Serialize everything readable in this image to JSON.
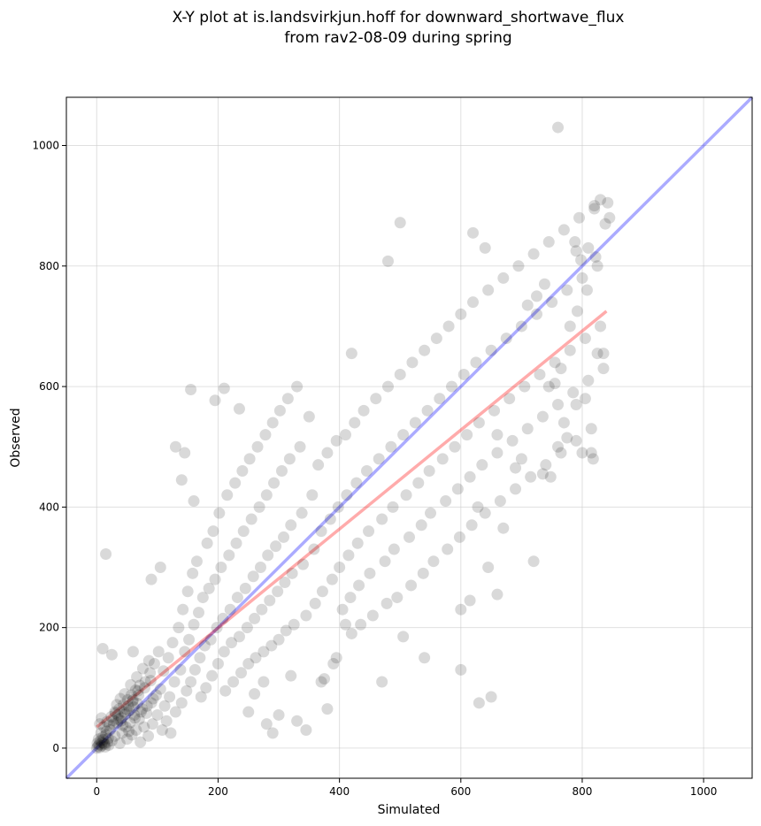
{
  "chart_data": {
    "type": "scatter",
    "title_line1": "X-Y plot at is.landsvirkjun.hoff for downward_shortwave_flux",
    "title_line2": "from rav2-08-09 during spring",
    "xlabel": "Simulated",
    "ylabel": "Observed",
    "xlim": [
      -50,
      1080
    ],
    "ylim": [
      -50,
      1080
    ],
    "xticks": [
      0,
      200,
      400,
      600,
      800,
      1000
    ],
    "yticks": [
      0,
      200,
      400,
      600,
      800,
      1000
    ],
    "grid": true,
    "colors": {
      "points": "#000000",
      "one_to_one_line": "#0000ff",
      "fit_line": "#ff0000"
    },
    "one_to_one_line": {
      "x": [
        -50,
        1080
      ],
      "y": [
        -50,
        1080
      ]
    },
    "fit_line": {
      "x": [
        0,
        840
      ],
      "y": [
        35,
        725
      ]
    },
    "points": [
      [
        0,
        0
      ],
      [
        2,
        3
      ],
      [
        4,
        6
      ],
      [
        5,
        1
      ],
      [
        6,
        12
      ],
      [
        8,
        4
      ],
      [
        10,
        18
      ],
      [
        12,
        8
      ],
      [
        14,
        2
      ],
      [
        15,
        22
      ],
      [
        18,
        10
      ],
      [
        20,
        5
      ],
      [
        3,
        15
      ],
      [
        7,
        25
      ],
      [
        11,
        14
      ],
      [
        16,
        28
      ],
      [
        9,
        9
      ],
      [
        13,
        6
      ],
      [
        1,
        8
      ],
      [
        19,
        16
      ],
      [
        22,
        30
      ],
      [
        25,
        12
      ],
      [
        28,
        40
      ],
      [
        30,
        20
      ],
      [
        35,
        55
      ],
      [
        38,
        8
      ],
      [
        40,
        45
      ],
      [
        42,
        25
      ],
      [
        45,
        60
      ],
      [
        48,
        35
      ],
      [
        50,
        15
      ],
      [
        52,
        70
      ],
      [
        55,
        42
      ],
      [
        58,
        22
      ],
      [
        60,
        80
      ],
      [
        62,
        55
      ],
      [
        65,
        30
      ],
      [
        68,
        95
      ],
      [
        70,
        48
      ],
      [
        72,
        10
      ],
      [
        75,
        65
      ],
      [
        78,
        35
      ],
      [
        80,
        110
      ],
      [
        82,
        58
      ],
      [
        85,
        20
      ],
      [
        88,
        125
      ],
      [
        90,
        75
      ],
      [
        92,
        40
      ],
      [
        95,
        140
      ],
      [
        98,
        88
      ],
      [
        100,
        55
      ],
      [
        102,
        160
      ],
      [
        105,
        98
      ],
      [
        108,
        30
      ],
      [
        110,
        128
      ],
      [
        112,
        70
      ],
      [
        115,
        45
      ],
      [
        118,
        150
      ],
      [
        120,
        85
      ],
      [
        122,
        25
      ],
      [
        125,
        175
      ],
      [
        128,
        110
      ],
      [
        130,
        60
      ],
      [
        135,
        200
      ],
      [
        138,
        130
      ],
      [
        140,
        75
      ],
      [
        142,
        230
      ],
      [
        145,
        160
      ],
      [
        148,
        95
      ],
      [
        150,
        260
      ],
      [
        152,
        180
      ],
      [
        155,
        110
      ],
      [
        158,
        290
      ],
      [
        160,
        205
      ],
      [
        162,
        130
      ],
      [
        165,
        310
      ],
      [
        168,
        225
      ],
      [
        170,
        150
      ],
      [
        172,
        85
      ],
      [
        175,
        250
      ],
      [
        178,
        170
      ],
      [
        180,
        100
      ],
      [
        182,
        340
      ],
      [
        185,
        265
      ],
      [
        188,
        180
      ],
      [
        190,
        120
      ],
      [
        192,
        360
      ],
      [
        195,
        280
      ],
      [
        198,
        200
      ],
      [
        200,
        140
      ],
      [
        202,
        390
      ],
      [
        205,
        300
      ],
      [
        208,
        215
      ],
      [
        210,
        160
      ],
      [
        212,
        95
      ],
      [
        215,
        420
      ],
      [
        218,
        320
      ],
      [
        220,
        230
      ],
      [
        222,
        175
      ],
      [
        225,
        110
      ],
      [
        228,
        440
      ],
      [
        230,
        340
      ],
      [
        232,
        250
      ],
      [
        235,
        185
      ],
      [
        238,
        125
      ],
      [
        240,
        460
      ],
      [
        242,
        360
      ],
      [
        245,
        265
      ],
      [
        248,
        200
      ],
      [
        250,
        140
      ],
      [
        252,
        480
      ],
      [
        255,
        380
      ],
      [
        258,
        285
      ],
      [
        260,
        215
      ],
      [
        262,
        150
      ],
      [
        265,
        500
      ],
      [
        268,
        400
      ],
      [
        270,
        300
      ],
      [
        272,
        230
      ],
      [
        275,
        160
      ],
      [
        278,
        520
      ],
      [
        280,
        420
      ],
      [
        282,
        320
      ],
      [
        285,
        245
      ],
      [
        288,
        170
      ],
      [
        290,
        540
      ],
      [
        292,
        440
      ],
      [
        295,
        335
      ],
      [
        298,
        260
      ],
      [
        300,
        180
      ],
      [
        302,
        560
      ],
      [
        305,
        460
      ],
      [
        308,
        350
      ],
      [
        310,
        275
      ],
      [
        312,
        195
      ],
      [
        315,
        580
      ],
      [
        318,
        480
      ],
      [
        320,
        370
      ],
      [
        322,
        290
      ],
      [
        325,
        205
      ],
      [
        330,
        600
      ],
      [
        335,
        500
      ],
      [
        338,
        390
      ],
      [
        340,
        305
      ],
      [
        345,
        220
      ],
      [
        350,
        550
      ],
      [
        355,
        420
      ],
      [
        358,
        330
      ],
      [
        360,
        240
      ],
      [
        365,
        470
      ],
      [
        370,
        360
      ],
      [
        372,
        260
      ],
      [
        375,
        115
      ],
      [
        380,
        490
      ],
      [
        385,
        380
      ],
      [
        388,
        280
      ],
      [
        390,
        140
      ],
      [
        395,
        510
      ],
      [
        398,
        400
      ],
      [
        400,
        300
      ],
      [
        405,
        230
      ],
      [
        410,
        520
      ],
      [
        412,
        420
      ],
      [
        415,
        320
      ],
      [
        418,
        250
      ],
      [
        420,
        190
      ],
      [
        425,
        540
      ],
      [
        428,
        440
      ],
      [
        430,
        340
      ],
      [
        432,
        270
      ],
      [
        435,
        205
      ],
      [
        440,
        560
      ],
      [
        445,
        460
      ],
      [
        448,
        360
      ],
      [
        450,
        290
      ],
      [
        455,
        220
      ],
      [
        460,
        580
      ],
      [
        465,
        480
      ],
      [
        470,
        380
      ],
      [
        475,
        310
      ],
      [
        478,
        240
      ],
      [
        480,
        600
      ],
      [
        485,
        500
      ],
      [
        488,
        400
      ],
      [
        490,
        330
      ],
      [
        495,
        250
      ],
      [
        500,
        620
      ],
      [
        505,
        520
      ],
      [
        510,
        420
      ],
      [
        515,
        350
      ],
      [
        518,
        270
      ],
      [
        520,
        640
      ],
      [
        525,
        540
      ],
      [
        530,
        440
      ],
      [
        535,
        370
      ],
      [
        538,
        290
      ],
      [
        540,
        660
      ],
      [
        545,
        560
      ],
      [
        548,
        460
      ],
      [
        550,
        390
      ],
      [
        555,
        310
      ],
      [
        560,
        680
      ],
      [
        565,
        580
      ],
      [
        570,
        480
      ],
      [
        575,
        410
      ],
      [
        578,
        330
      ],
      [
        580,
        700
      ],
      [
        585,
        600
      ],
      [
        590,
        500
      ],
      [
        595,
        430
      ],
      [
        598,
        350
      ],
      [
        600,
        720
      ],
      [
        605,
        620
      ],
      [
        610,
        520
      ],
      [
        615,
        450
      ],
      [
        618,
        370
      ],
      [
        620,
        740
      ],
      [
        625,
        640
      ],
      [
        630,
        540
      ],
      [
        635,
        470
      ],
      [
        640,
        390
      ],
      [
        645,
        760
      ],
      [
        650,
        660
      ],
      [
        655,
        560
      ],
      [
        660,
        490
      ],
      [
        665,
        410
      ],
      [
        670,
        780
      ],
      [
        675,
        680
      ],
      [
        680,
        580
      ],
      [
        685,
        510
      ],
      [
        690,
        430
      ],
      [
        695,
        800
      ],
      [
        700,
        700
      ],
      [
        705,
        600
      ],
      [
        710,
        530
      ],
      [
        715,
        450
      ],
      [
        720,
        820
      ],
      [
        725,
        720
      ],
      [
        730,
        620
      ],
      [
        735,
        550
      ],
      [
        740,
        470
      ],
      [
        745,
        840
      ],
      [
        750,
        740
      ],
      [
        755,
        640
      ],
      [
        760,
        570
      ],
      [
        765,
        490
      ],
      [
        770,
        860
      ],
      [
        775,
        760
      ],
      [
        780,
        660
      ],
      [
        785,
        590
      ],
      [
        790,
        510
      ],
      [
        795,
        880
      ],
      [
        800,
        780
      ],
      [
        805,
        680
      ],
      [
        810,
        610
      ],
      [
        815,
        530
      ],
      [
        820,
        900
      ],
      [
        825,
        800
      ],
      [
        830,
        700
      ],
      [
        835,
        630
      ],
      [
        760,
        1030
      ],
      [
        500,
        872
      ],
      [
        480,
        808
      ],
      [
        640,
        830
      ],
      [
        620,
        855
      ],
      [
        420,
        655
      ],
      [
        155,
        595
      ],
      [
        210,
        597
      ],
      [
        195,
        577
      ],
      [
        235,
        563
      ],
      [
        15,
        322
      ],
      [
        60,
        160
      ],
      [
        10,
        165
      ],
      [
        25,
        155
      ],
      [
        90,
        280
      ],
      [
        105,
        300
      ],
      [
        130,
        500
      ],
      [
        140,
        445
      ],
      [
        145,
        490
      ],
      [
        160,
        410
      ],
      [
        30,
        60
      ],
      [
        33,
        72
      ],
      [
        36,
        48
      ],
      [
        39,
        82
      ],
      [
        43,
        38
      ],
      [
        46,
        90
      ],
      [
        49,
        65
      ],
      [
        53,
        28
      ],
      [
        56,
        105
      ],
      [
        59,
        78
      ],
      [
        63,
        50
      ],
      [
        66,
        118
      ],
      [
        69,
        88
      ],
      [
        73,
        60
      ],
      [
        76,
        132
      ],
      [
        79,
        100
      ],
      [
        83,
        70
      ],
      [
        86,
        145
      ],
      [
        89,
        112
      ],
      [
        93,
        82
      ],
      [
        5,
        40
      ],
      [
        8,
        50
      ],
      [
        12,
        35
      ],
      [
        17,
        44
      ],
      [
        21,
        38
      ],
      [
        24,
        52
      ],
      [
        27,
        46
      ],
      [
        31,
        58
      ],
      [
        34,
        42
      ],
      [
        37,
        65
      ],
      [
        41,
        50
      ],
      [
        44,
        72
      ],
      [
        47,
        56
      ],
      [
        51,
        80
      ],
      [
        54,
        62
      ],
      [
        57,
        88
      ],
      [
        61,
        68
      ],
      [
        64,
        96
      ],
      [
        67,
        74
      ],
      [
        71,
        104
      ],
      [
        250,
        60
      ],
      [
        280,
        40
      ],
      [
        300,
        55
      ],
      [
        330,
        45
      ],
      [
        345,
        30
      ],
      [
        370,
        110
      ],
      [
        290,
        25
      ],
      [
        260,
        90
      ],
      [
        275,
        110
      ],
      [
        320,
        120
      ],
      [
        380,
        65
      ],
      [
        395,
        150
      ],
      [
        410,
        205
      ],
      [
        470,
        110
      ],
      [
        505,
        185
      ],
      [
        540,
        150
      ],
      [
        600,
        130
      ],
      [
        630,
        75
      ],
      [
        650,
        85
      ],
      [
        660,
        255
      ],
      [
        700,
        480
      ],
      [
        720,
        310
      ],
      [
        735,
        455
      ],
      [
        760,
        500
      ],
      [
        770,
        540
      ],
      [
        790,
        570
      ],
      [
        800,
        490
      ],
      [
        805,
        580
      ],
      [
        815,
        490
      ],
      [
        825,
        655
      ],
      [
        810,
        830
      ],
      [
        820,
        895
      ],
      [
        830,
        910
      ],
      [
        838,
        870
      ],
      [
        842,
        905
      ],
      [
        790,
        825
      ],
      [
        788,
        840
      ],
      [
        780,
        700
      ],
      [
        765,
        630
      ],
      [
        745,
        600
      ],
      [
        600,
        230
      ],
      [
        615,
        245
      ],
      [
        628,
        400
      ],
      [
        645,
        300
      ],
      [
        660,
        520
      ],
      [
        670,
        365
      ],
      [
        690,
        465
      ],
      [
        710,
        735
      ],
      [
        725,
        750
      ],
      [
        738,
        770
      ],
      [
        748,
        450
      ],
      [
        755,
        605
      ],
      [
        775,
        515
      ],
      [
        792,
        725
      ],
      [
        798,
        810
      ],
      [
        808,
        760
      ],
      [
        818,
        480
      ],
      [
        822,
        815
      ],
      [
        835,
        655
      ],
      [
        845,
        880
      ]
    ]
  }
}
